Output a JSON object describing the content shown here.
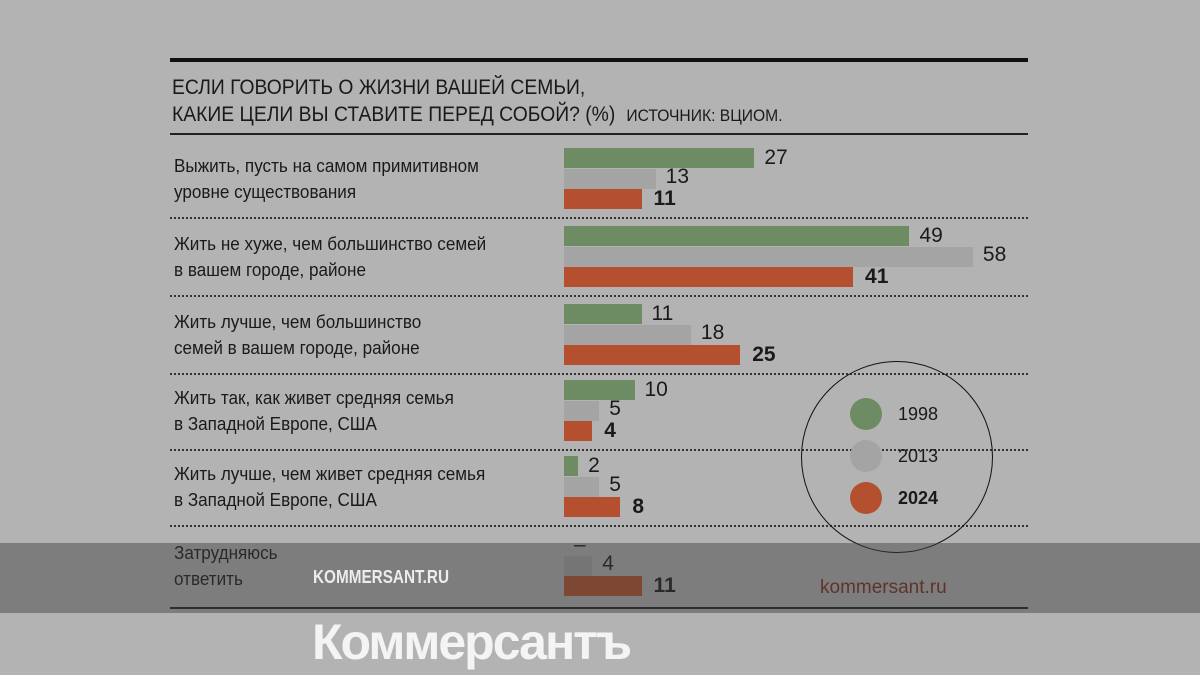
{
  "colors": {
    "1998": "#6e8c63",
    "2013": "#a4a4a4",
    "2024": "#b4502f"
  },
  "chart_data": {
    "type": "bar",
    "orientation": "horizontal",
    "title": "ЕСЛИ ГОВОРИТЬ О ЖИЗНИ ВАШЕЙ СЕМЬИ, КАКИЕ ЦЕЛИ ВЫ СТАВИТЕ ПЕРЕД СОБОЙ? (%)",
    "title_line1": "ЕСЛИ ГОВОРИТЬ О ЖИЗНИ ВАШЕЙ СЕМЬИ,",
    "title_line2": "КАКИЕ ЦЕЛИ ВЫ СТАВИТЕ ПЕРЕД СОБОЙ? (%)",
    "source": "ИСТОЧНИК: ВЦИОМ.",
    "categories": [
      [
        "Выжить, пусть на самом примитивном",
        "уровне существования"
      ],
      [
        "Жить не хуже, чем большинство семей",
        "в вашем городе, районе"
      ],
      [
        "Жить лучше, чем большинство",
        "семей в вашем городе, районе"
      ],
      [
        "Жить так, как живет средняя семья",
        "в Западной Европе, США"
      ],
      [
        "Жить лучше, чем живет средняя семья",
        "в Западной Европе, США"
      ],
      [
        "Затрудняюсь",
        "ответить"
      ]
    ],
    "series": [
      {
        "name": "1998",
        "values": [
          27,
          49,
          11,
          10,
          2,
          null
        ],
        "labels": [
          "27",
          "49",
          "11",
          "10",
          "2",
          "–"
        ]
      },
      {
        "name": "2013",
        "values": [
          13,
          58,
          18,
          5,
          5,
          4
        ],
        "labels": [
          "13",
          "58",
          "18",
          "5",
          "5",
          "4"
        ]
      },
      {
        "name": "2024",
        "values": [
          11,
          41,
          25,
          4,
          8,
          11
        ],
        "labels": [
          "11",
          "41",
          "25",
          "4",
          "8",
          "11"
        ]
      }
    ],
    "legend": "bottom-right circle",
    "xlim": [
      0,
      60
    ]
  },
  "watermark": {
    "brand": "Коммерсантъ",
    "site": "KOMMERSANT.RU"
  },
  "footer": "kommersant.ru"
}
